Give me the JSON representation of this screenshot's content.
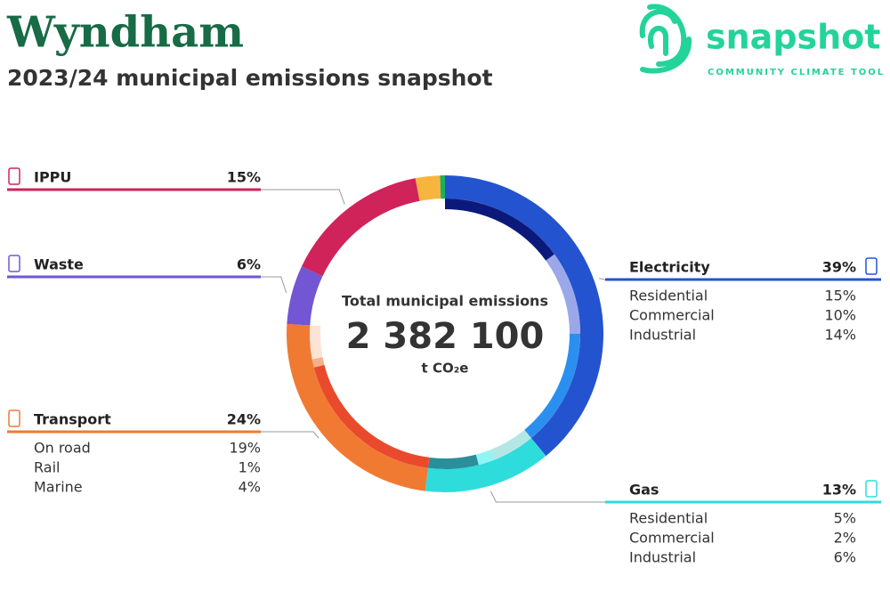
{
  "brand": {
    "name": "snapshot",
    "tagline": "COMMUNITY CLIMATE TOOL"
  },
  "chart_data": {
    "type": "donut",
    "title": "Wyndham",
    "subtitle": "2023/24 municipal emissions snapshot",
    "center_label": "Total municipal emissions",
    "total": {
      "value": 2382100,
      "label": "2 382 100"
    },
    "total_unit": "t CO₂e",
    "sectors": [
      {
        "name": "Electricity",
        "value": 39,
        "value_label": "39%",
        "color": "#2453cf",
        "side": "right",
        "subsectors": [
          {
            "name": "Residential",
            "value": 15,
            "value_label": "15%",
            "color": "#0b1a7a"
          },
          {
            "name": "Commercial",
            "value": 10,
            "value_label": "10%",
            "color": "#9aa8ea"
          },
          {
            "name": "Industrial",
            "value": 14,
            "value_label": "14%",
            "color": "#2b8ff0"
          }
        ]
      },
      {
        "name": "Gas",
        "value": 13,
        "value_label": "13%",
        "color": "#2edcdc",
        "side": "right",
        "subsectors": [
          {
            "name": "Residential",
            "value": 5,
            "value_label": "5%",
            "color": "#b5e6e6"
          },
          {
            "name": "Commercial",
            "value": 2,
            "value_label": "2%",
            "color": "#8ff5f5"
          },
          {
            "name": "Industrial",
            "value": 6,
            "value_label": "6%",
            "color": "#2a8f9a"
          }
        ]
      },
      {
        "name": "Transport",
        "value": 24,
        "value_label": "24%",
        "color": "#f07a32",
        "side": "left",
        "subsectors": [
          {
            "name": "On road",
            "value": 19,
            "value_label": "19%",
            "color": "#ea4a2c"
          },
          {
            "name": "Rail",
            "value": 1,
            "value_label": "1%",
            "color": "#f6b08a"
          },
          {
            "name": "Marine",
            "value": 4,
            "value_label": "4%",
            "color": "#fde3d6"
          }
        ]
      },
      {
        "name": "Waste",
        "value": 6,
        "value_label": "6%",
        "color": "#7256d4",
        "side": "left",
        "subsectors": []
      },
      {
        "name": "IPPU",
        "value": 15,
        "value_label": "15%",
        "color": "#d0235a",
        "side": "left",
        "subsectors": []
      },
      {
        "name": null,
        "value": 2.5,
        "color": "#f7b53e",
        "subsectors": []
      },
      {
        "name": null,
        "value": 0.5,
        "color": "#1fae5a",
        "subsectors": []
      }
    ]
  }
}
